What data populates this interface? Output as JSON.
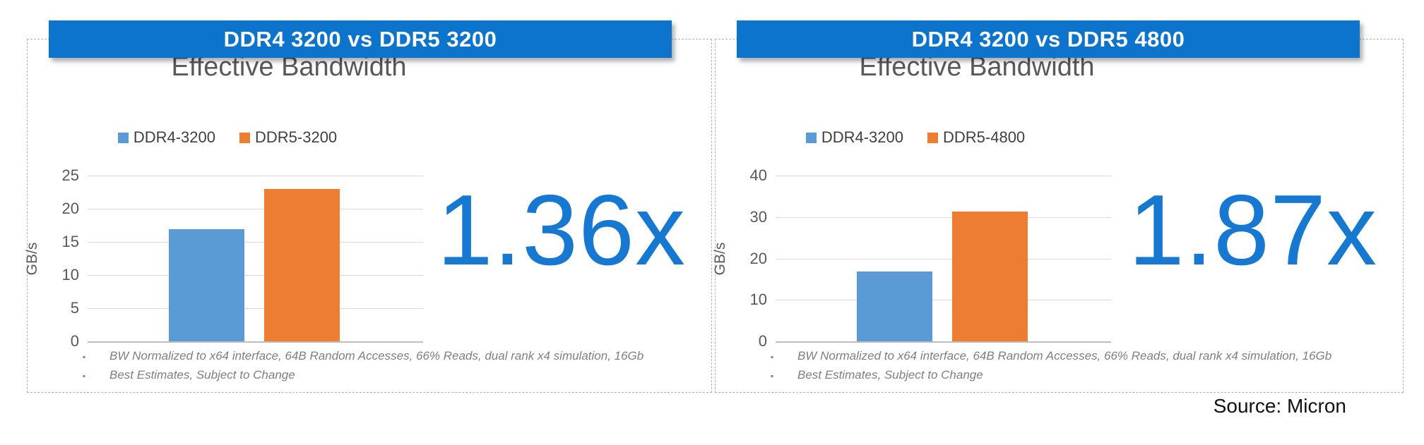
{
  "page": {
    "source_label": "Source: Micron"
  },
  "colors": {
    "banner_blue": "#0d74ce",
    "bar_blue": "#5b9bd5",
    "bar_orange": "#ed7d31",
    "multiplier_blue": "#1778d2",
    "title_gray": "#595959",
    "footnote_gray": "#7f7f7f",
    "gridline_gray": "#d9d9d9"
  },
  "panels": [
    {
      "banner": "DDR4 3200 vs DDR5 3200",
      "multiplier": "1.36x",
      "footnotes": [
        "BW Normalized to x64 interface, 64B Random Accesses, 66% Reads, dual rank x4 simulation, 16Gb",
        "Best Estimates, Subject to Change"
      ],
      "chart_data": {
        "type": "bar",
        "title": "Effective Bandwidth",
        "xlabel": "",
        "ylabel": "GB/s",
        "ylim": [
          0,
          25
        ],
        "yticks": [
          0,
          5,
          10,
          15,
          20,
          25
        ],
        "grid": true,
        "legend_position": "top",
        "categories": [
          "DDR4-3200",
          "DDR5-3200"
        ],
        "series": [
          {
            "name": "DDR4-3200",
            "color": "#5b9bd5",
            "values": [
              16.9
            ]
          },
          {
            "name": "DDR5-3200",
            "color": "#ed7d31",
            "values": [
              23.0
            ]
          }
        ]
      }
    },
    {
      "banner": "DDR4 3200 vs DDR5 4800",
      "multiplier": "1.87x",
      "footnotes": [
        "BW Normalized to x64 interface, 64B Random Accesses, 66% Reads, dual rank x4 simulation, 16Gb",
        "Best Estimates, Subject to Change"
      ],
      "chart_data": {
        "type": "bar",
        "title": "Effective Bandwidth",
        "xlabel": "",
        "ylabel": "GB/s",
        "ylim": [
          0,
          40
        ],
        "yticks": [
          0,
          10,
          20,
          30,
          40
        ],
        "grid": true,
        "legend_position": "top",
        "categories": [
          "DDR4-3200",
          "DDR5-4800"
        ],
        "series": [
          {
            "name": "DDR4-3200",
            "color": "#5b9bd5",
            "values": [
              16.8
            ]
          },
          {
            "name": "DDR5-4800",
            "color": "#ed7d31",
            "values": [
              31.4
            ]
          }
        ]
      }
    }
  ]
}
